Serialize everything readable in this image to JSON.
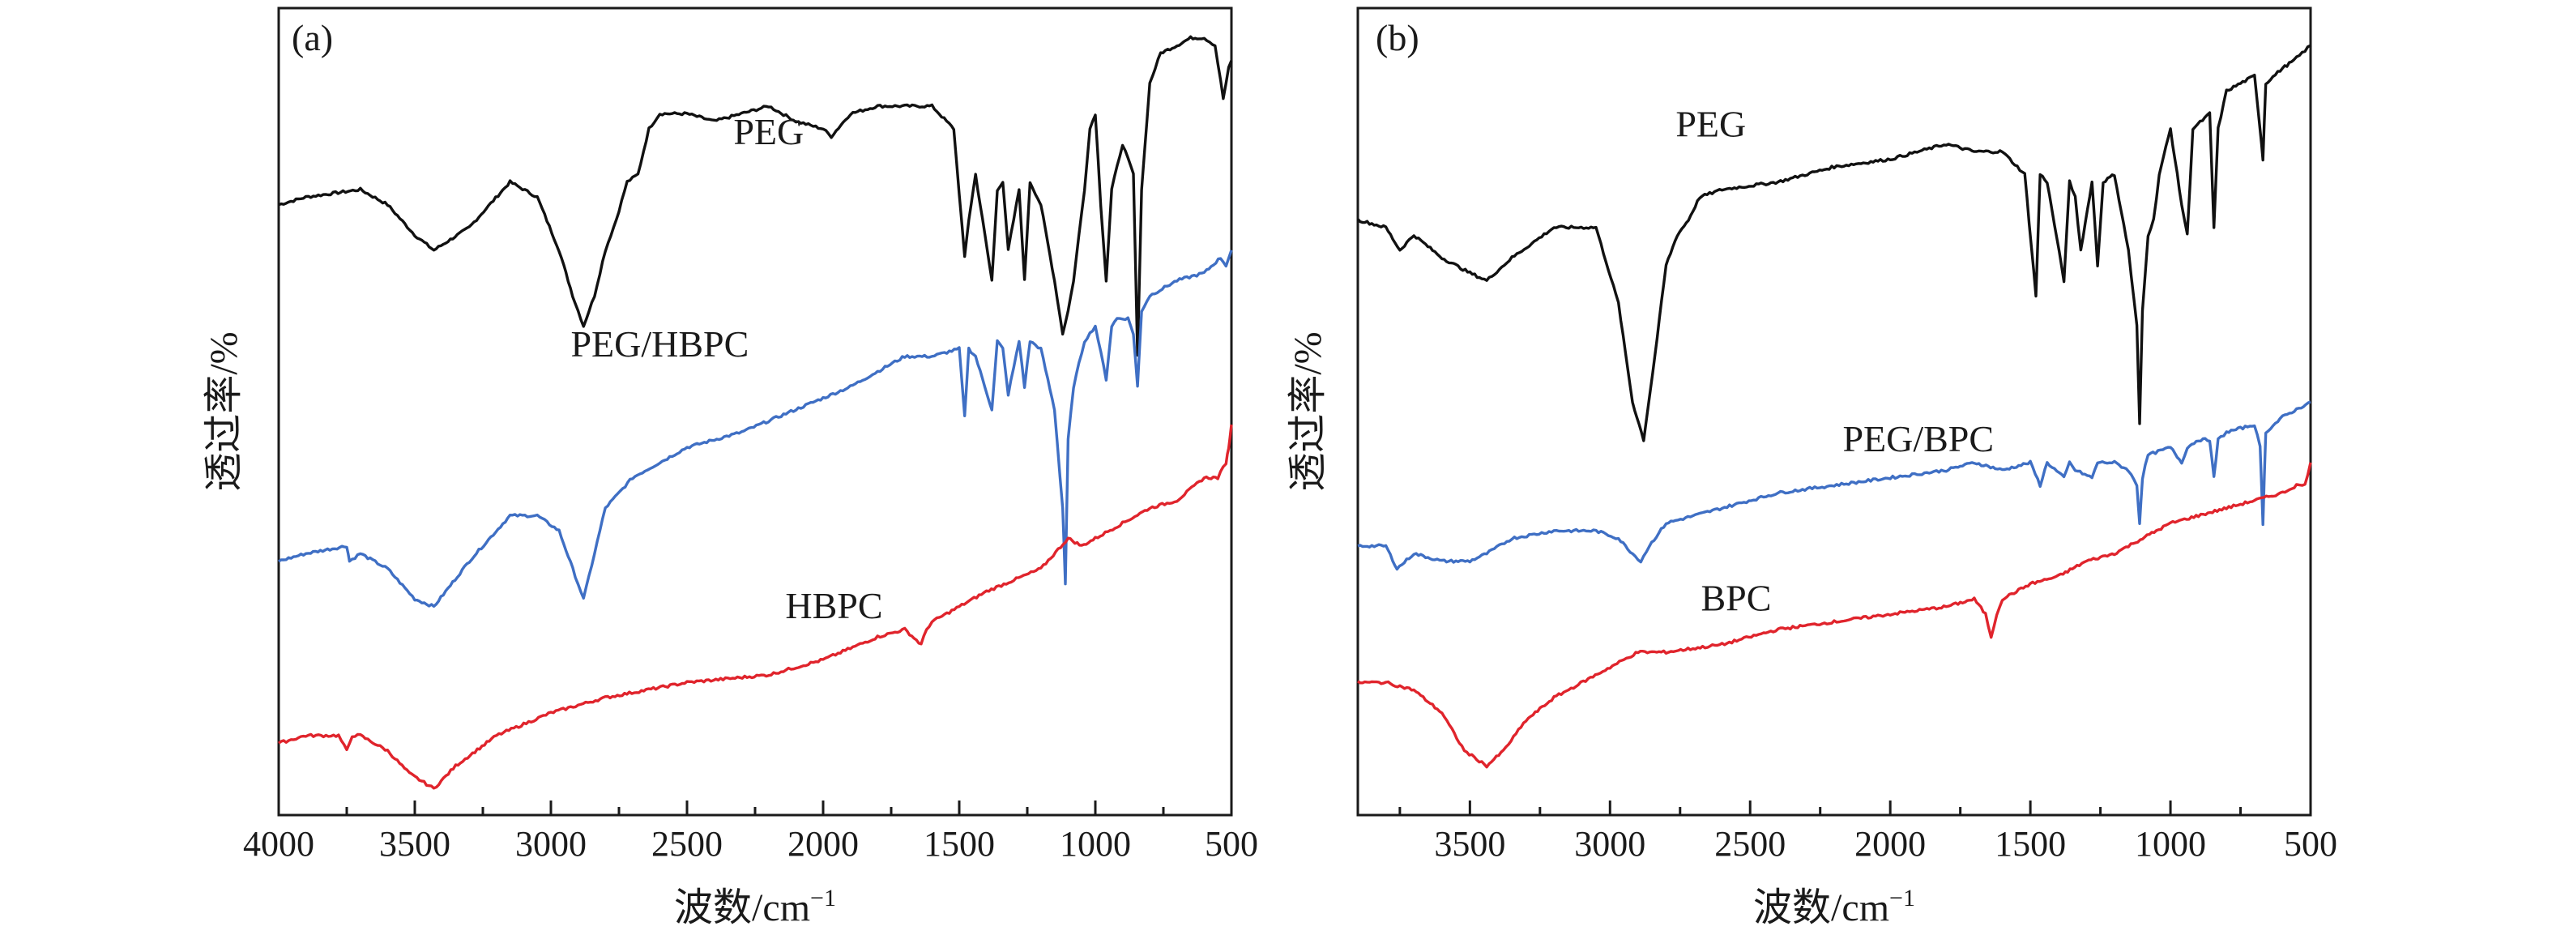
{
  "figure": {
    "axis_unit_label": "波数/cm",
    "axis_unit_superscript": "−1",
    "y_axis_label": "透过率/%"
  },
  "chart_data": [
    {
      "type": "line",
      "panel": "(a)",
      "xlabel": "波数/cm⁻¹",
      "ylabel": "透过率/%",
      "xlim": [
        4000,
        500
      ],
      "x_reversed": true,
      "ylim": [
        0,
        100
      ],
      "y_ticks_shown": false,
      "grid": false,
      "ticks": [
        "4000",
        "3500",
        "3000",
        "2500",
        "2000",
        "1500",
        "1000",
        "500"
      ],
      "tick_values": [
        4000,
        3500,
        3000,
        2500,
        2000,
        1500,
        1000,
        500
      ],
      "series": [
        {
          "name": "PEG",
          "label_x": 2200,
          "label_y": 84,
          "color": "#111111",
          "x": [
            4000,
            3900,
            3700,
            3600,
            3500,
            3430,
            3300,
            3150,
            3050,
            2970,
            2920,
            2880,
            2840,
            2800,
            2760,
            2720,
            2680,
            2640,
            2600,
            2500,
            2400,
            2300,
            2200,
            2100,
            2000,
            1970,
            1900,
            1800,
            1700,
            1600,
            1520,
            1480,
            1465,
            1440,
            1380,
            1360,
            1340,
            1320,
            1280,
            1260,
            1240,
            1200,
            1150,
            1120,
            1100,
            1080,
            1060,
            1040,
            1020,
            1000,
            980,
            960,
            940,
            900,
            860,
            845,
            830,
            800,
            760,
            700,
            650,
            600,
            560,
            530,
            510,
            500
          ],
          "y": [
            76,
            77,
            78,
            76,
            72,
            70,
            73,
            79,
            77,
            70,
            64,
            60,
            64,
            70,
            74,
            79,
            80,
            86,
            88,
            88,
            87,
            88,
            89,
            87,
            86,
            85,
            88,
            89,
            89,
            89,
            86,
            69,
            74,
            80,
            66,
            78,
            79,
            70,
            78,
            66,
            79,
            76,
            66,
            59,
            62,
            66,
            72,
            78,
            86,
            88,
            76,
            66,
            78,
            84,
            80,
            56,
            78,
            92,
            96,
            97,
            98,
            98,
            97,
            90,
            94,
            95
          ]
        },
        {
          "name": "PEG/HBPC",
          "label_x": 2600,
          "label_y": 56,
          "color": "#3f6fc4",
          "x": [
            4000,
            3900,
            3750,
            3740,
            3700,
            3600,
            3500,
            3430,
            3300,
            3150,
            3050,
            2970,
            2920,
            2880,
            2840,
            2800,
            2700,
            2500,
            2300,
            2100,
            1900,
            1800,
            1700,
            1600,
            1500,
            1480,
            1465,
            1440,
            1380,
            1360,
            1340,
            1320,
            1280,
            1260,
            1240,
            1200,
            1150,
            1120,
            1110,
            1100,
            1080,
            1060,
            1040,
            1000,
            960,
            940,
            920,
            880,
            860,
            845,
            830,
            800,
            700,
            600,
            540,
            520,
            500
          ],
          "y": [
            29,
            30,
            31,
            29,
            30,
            28,
            24,
            23,
            29,
            35,
            35,
            33,
            28,
            24,
            30,
            36,
            40,
            44,
            46,
            49,
            52,
            54,
            56,
            56,
            57,
            48,
            57,
            56,
            49,
            58,
            57,
            51,
            58,
            52,
            58,
            57,
            49,
            36,
            26,
            45,
            52,
            55,
            58,
            60,
            53,
            60,
            61,
            61,
            59,
            52,
            62,
            64,
            66,
            67,
            69,
            68,
            70
          ]
        },
        {
          "name": "HBPC",
          "label_x": 1960,
          "label_y": 21.5,
          "color": "#e0242c",
          "x": [
            4000,
            3900,
            3780,
            3750,
            3730,
            3700,
            3600,
            3520,
            3430,
            3350,
            3200,
            3000,
            2800,
            2500,
            2200,
            2000,
            1800,
            1700,
            1640,
            1620,
            1600,
            1500,
            1400,
            1200,
            1100,
            1050,
            1000,
            900,
            800,
            700,
            600,
            550,
            520,
            510,
            500
          ],
          "y": [
            5,
            6,
            6,
            4,
            6,
            6,
            4,
            1,
            -1,
            2,
            6,
            9,
            11,
            13,
            14,
            16,
            19,
            20,
            18,
            20,
            21,
            23,
            25,
            28,
            32,
            31,
            32,
            34,
            36,
            37,
            40,
            40,
            42,
            44,
            47
          ]
        }
      ]
    },
    {
      "type": "line",
      "panel": "(b)",
      "xlabel": "波数/cm⁻¹",
      "ylabel": "透过率/%",
      "xlim": [
        3900,
        500
      ],
      "x_reversed": true,
      "ylim": [
        0,
        100
      ],
      "y_ticks_shown": false,
      "grid": false,
      "ticks": [
        "3500",
        "3000",
        "2500",
        "2000",
        "1500",
        "1000",
        "500"
      ],
      "tick_values": [
        3500,
        3000,
        2500,
        2000,
        1500,
        1000,
        500
      ],
      "series": [
        {
          "name": "PEG",
          "label_x": 2640,
          "label_y": 85,
          "color": "#111111",
          "x": [
            3900,
            3800,
            3750,
            3700,
            3600,
            3500,
            3440,
            3350,
            3200,
            3050,
            2970,
            2920,
            2880,
            2840,
            2800,
            2760,
            2720,
            2680,
            2600,
            2400,
            2200,
            2000,
            1800,
            1700,
            1600,
            1520,
            1480,
            1465,
            1440,
            1380,
            1360,
            1340,
            1320,
            1280,
            1260,
            1240,
            1200,
            1150,
            1120,
            1110,
            1100,
            1080,
            1060,
            1040,
            1000,
            960,
            940,
            920,
            860,
            845,
            830,
            800,
            700,
            680,
            670,
            660,
            600,
            560,
            530,
            500
          ],
          "y": [
            74,
            73,
            70,
            72,
            69,
            67,
            66,
            69,
            73,
            73,
            63,
            50,
            45,
            56,
            68,
            72,
            74,
            77,
            78,
            79,
            81,
            82,
            84,
            83,
            83,
            80,
            64,
            80,
            79,
            66,
            79,
            77,
            70,
            79,
            68,
            79,
            80,
            70,
            60,
            47,
            62,
            72,
            74,
            80,
            86,
            76,
            72,
            86,
            88,
            73,
            86,
            91,
            93,
            86,
            82,
            92,
            94,
            95,
            96,
            97
          ]
        },
        {
          "name": "PEG/BPC",
          "label_x": 1900,
          "label_y": 43.5,
          "color": "#3f6fc4",
          "x": [
            3900,
            3800,
            3760,
            3700,
            3600,
            3500,
            3440,
            3350,
            3200,
            3050,
            2970,
            2920,
            2890,
            2860,
            2800,
            2600,
            2400,
            2200,
            2000,
            1800,
            1700,
            1600,
            1500,
            1465,
            1440,
            1380,
            1360,
            1340,
            1280,
            1260,
            1200,
            1150,
            1120,
            1110,
            1100,
            1080,
            1000,
            960,
            940,
            900,
            860,
            845,
            830,
            800,
            700,
            680,
            670,
            660,
            600,
            500
          ],
          "y": [
            31,
            31,
            28,
            30,
            29,
            29,
            30,
            32,
            33,
            33,
            32,
            30,
            29,
            31,
            34,
            36,
            38,
            39,
            40,
            41,
            42,
            41,
            42,
            39,
            42,
            40,
            42,
            41,
            40,
            42,
            42,
            41,
            39,
            34,
            40,
            43,
            44,
            42,
            44,
            45,
            45,
            40,
            45,
            46,
            47,
            44,
            34,
            46,
            48,
            50
          ]
        },
        {
          "name": "BPC",
          "label_x": 2550,
          "label_y": 22.5,
          "color": "#e0242c",
          "x": [
            3900,
            3800,
            3700,
            3600,
            3520,
            3440,
            3380,
            3300,
            3200,
            3000,
            2900,
            2800,
            2600,
            2400,
            2200,
            2000,
            1800,
            1700,
            1660,
            1640,
            1620,
            1600,
            1500,
            1400,
            1300,
            1200,
            1100,
            1000,
            900,
            800,
            700,
            600,
            550,
            520,
            500
          ],
          "y": [
            13,
            13,
            12,
            9,
            4,
            2,
            4,
            8,
            11,
            15,
            17,
            17,
            18,
            20,
            21,
            22,
            23,
            24,
            22,
            19,
            22,
            24,
            26,
            27,
            29,
            30,
            32,
            34,
            35,
            36,
            37,
            38,
            39,
            39,
            42
          ]
        }
      ]
    }
  ]
}
